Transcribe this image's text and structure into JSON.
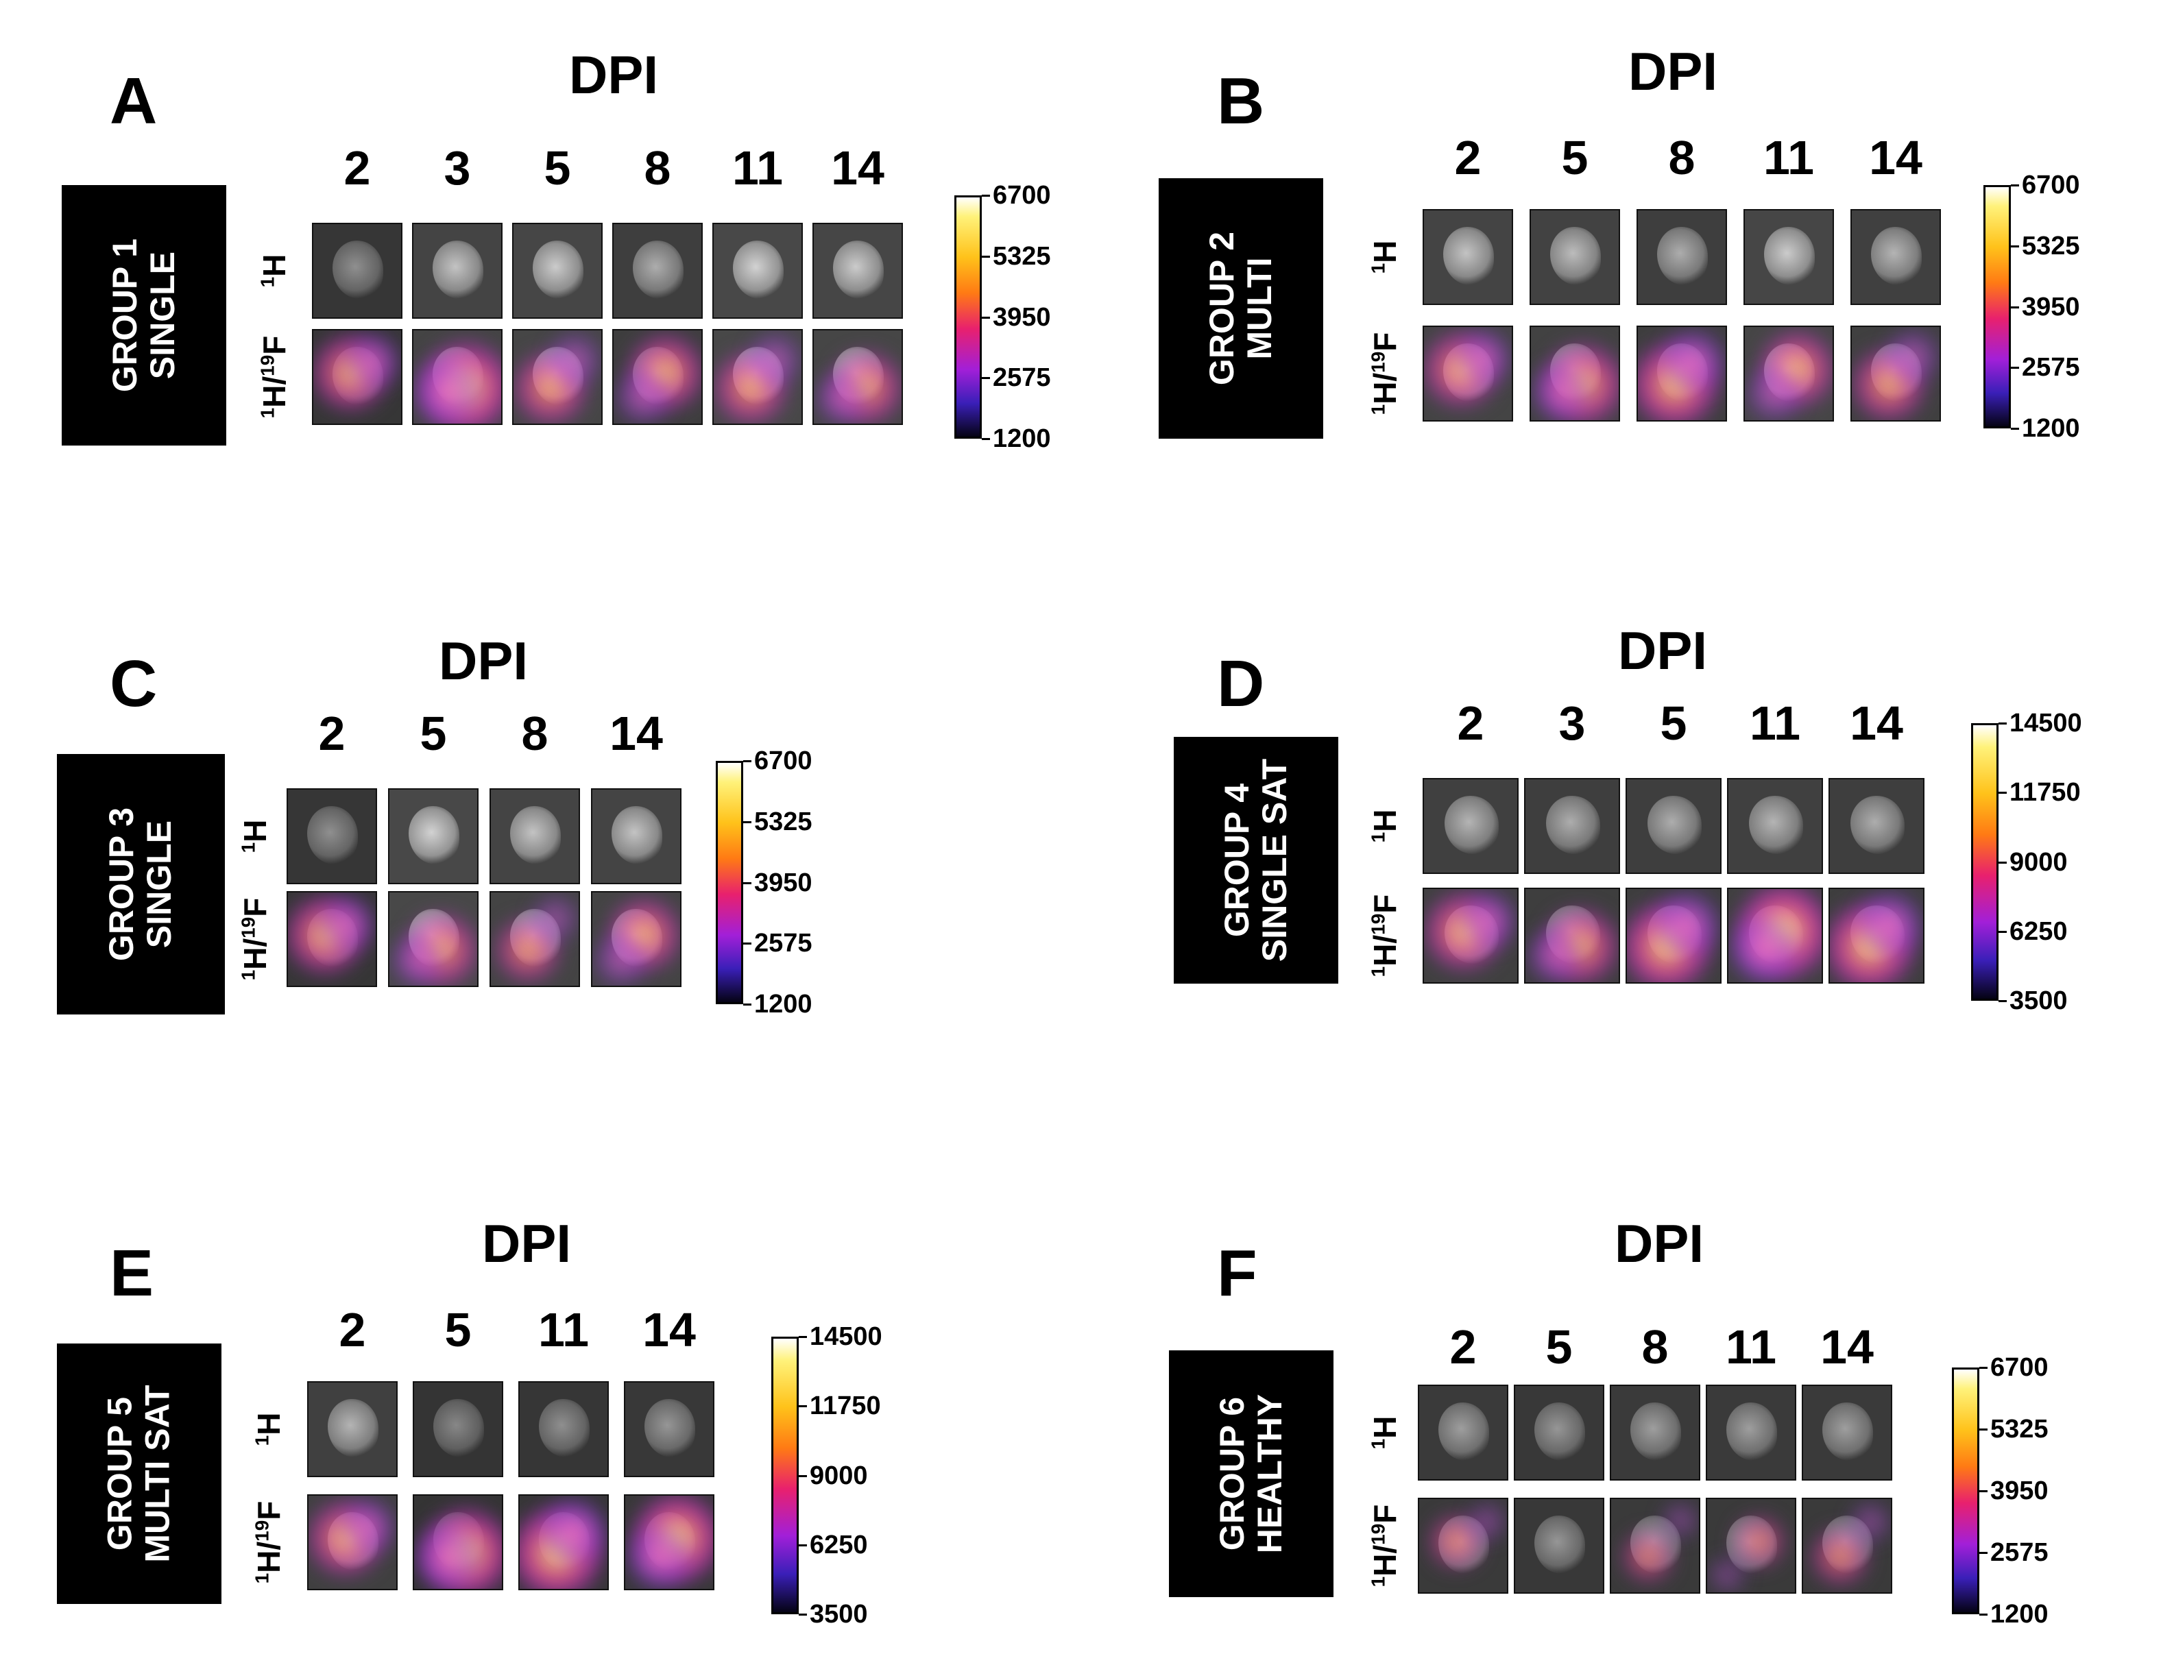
{
  "row_labels": {
    "h": "1H",
    "hf": "1H/19F",
    "h_mass": "1",
    "f_mass": "19"
  },
  "axis_title": "DPI",
  "panels": [
    {
      "letter": "A",
      "group": [
        "GROUP 1",
        "SINGLE"
      ],
      "days": [
        "2",
        "3",
        "5",
        "8",
        "11",
        "14"
      ],
      "colorbar": [
        "6700",
        "5325",
        "3950",
        "2575",
        "1200"
      ],
      "h_brightness": [
        0.35,
        0.7,
        0.75,
        0.55,
        0.8,
        0.75
      ],
      "f_intensity": [
        0.6,
        0.9,
        0.55,
        0.6,
        0.55,
        0.55
      ]
    },
    {
      "letter": "B",
      "group": [
        "GROUP 2",
        "MULTI"
      ],
      "days": [
        "2",
        "5",
        "8",
        "11",
        "14"
      ],
      "colorbar": [
        "6700",
        "5325",
        "3950",
        "2575",
        "1200"
      ],
      "h_brightness": [
        0.7,
        0.65,
        0.55,
        0.75,
        0.6
      ],
      "f_intensity": [
        0.6,
        0.7,
        0.8,
        0.6,
        0.55
      ]
    },
    {
      "letter": "C",
      "group": [
        "GROUP 3",
        "SINGLE"
      ],
      "days": [
        "2",
        "5",
        "8",
        "14"
      ],
      "colorbar": [
        "6700",
        "5325",
        "3950",
        "2575",
        "1200"
      ],
      "h_brightness": [
        0.35,
        0.8,
        0.7,
        0.7
      ],
      "f_intensity": [
        0.65,
        0.55,
        0.4,
        0.55
      ]
    },
    {
      "letter": "D",
      "group": [
        "GROUP 4",
        "SINGLE SAT"
      ],
      "days": [
        "2",
        "3",
        "5",
        "11",
        "14"
      ],
      "colorbar": [
        "14500",
        "11750",
        "9000",
        "6250",
        "3500"
      ],
      "h_brightness": [
        0.6,
        0.55,
        0.55,
        0.6,
        0.55
      ],
      "f_intensity": [
        0.65,
        0.6,
        0.85,
        0.95,
        0.85
      ]
    },
    {
      "letter": "E",
      "group": [
        "GROUP 5",
        "MULTI SAT"
      ],
      "days": [
        "2",
        "5",
        "11",
        "14"
      ],
      "colorbar": [
        "14500",
        "11750",
        "9000",
        "6250",
        "3500"
      ],
      "h_brightness": [
        0.6,
        0.3,
        0.35,
        0.4
      ],
      "f_intensity": [
        0.6,
        0.85,
        0.9,
        0.85
      ]
    },
    {
      "letter": "F",
      "group": [
        "GROUP 6",
        "HEALTHY"
      ],
      "days": [
        "2",
        "5",
        "8",
        "11",
        "14"
      ],
      "colorbar": [
        "6700",
        "5325",
        "3950",
        "2575",
        "1200"
      ],
      "h_brightness": [
        0.45,
        0.4,
        0.45,
        0.45,
        0.45
      ],
      "f_intensity": [
        0.2,
        0.05,
        0.15,
        0.15,
        0.25
      ]
    }
  ]
}
